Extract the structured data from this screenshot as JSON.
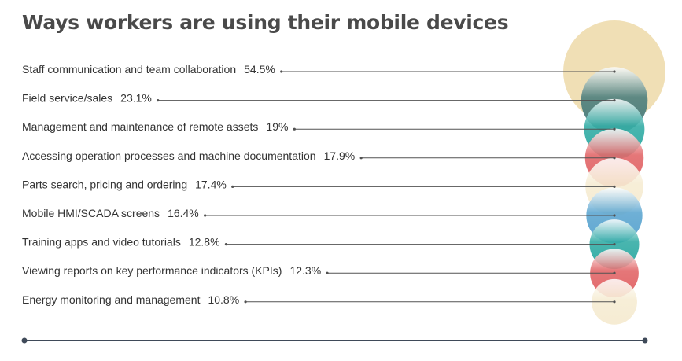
{
  "title": "Ways workers are using their mobile devices",
  "chart_data": {
    "type": "bubble",
    "title": "Ways workers are using their mobile devices",
    "unit": "%",
    "categories": [
      "Staff communication and team collaboration",
      "Field service/sales",
      "Management and maintenance of remote assets",
      "Accessing operation processes and machine documentation",
      "Parts search, pricing and ordering",
      "Mobile HMI/SCADA screens",
      "Training apps and video tutorials",
      "Viewing reports on key performance indicators (KPIs)",
      "Energy monitoring and management"
    ],
    "values": [
      54.5,
      23.1,
      19,
      17.9,
      17.4,
      16.4,
      12.8,
      12.3,
      10.8
    ],
    "value_labels": [
      "54.5%",
      "23.1%",
      "19%",
      "17.9%",
      "17.4%",
      "16.4%",
      "12.8%",
      "12.3%",
      "10.8%"
    ],
    "colors": {
      "tan": "#f0dfb5",
      "slate": "#4e7f7d",
      "teal": "#35ada6",
      "red": "#e2686a",
      "cream": "#f6ecd3",
      "blue": "#5fa7d1",
      "line": "#525252",
      "axis": "#3f4a59"
    },
    "bubble_colors": [
      "tan",
      "slate",
      "teal",
      "red",
      "cream",
      "blue",
      "teal",
      "red",
      "cream"
    ]
  }
}
